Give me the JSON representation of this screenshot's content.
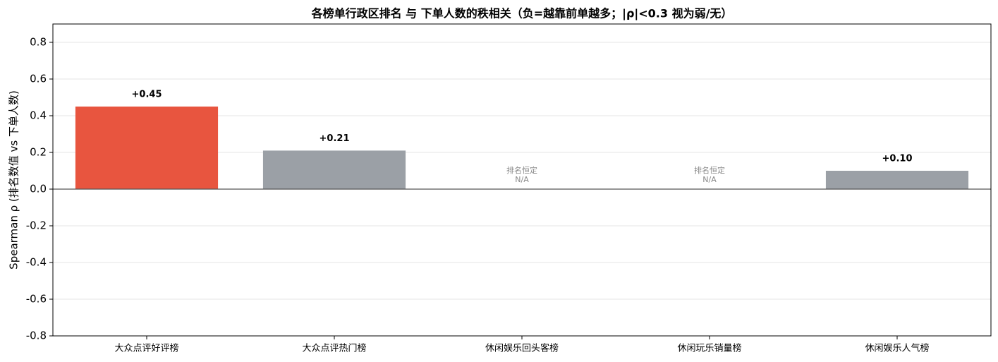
{
  "chart_data": {
    "type": "bar",
    "title": "各榜单行政区排名 与 下单人数的秩相关（负=越靠前单越多；|ρ|<0.3 视为弱/无）",
    "y_label": "Spearman ρ (排名数值 vs 下单人数)",
    "categories": [
      "大众点评好评榜",
      "大众点评热门榜",
      "休闲娱乐回头客榜",
      "休闲玩乐销量榜",
      "休闲娱乐人气榜"
    ],
    "values": [
      0.45,
      0.21,
      null,
      null,
      0.1
    ],
    "value_labels": [
      "+0.45",
      "+0.21",
      "N/A",
      "N/A",
      "+0.10"
    ],
    "notes": [
      null,
      null,
      "排名恒定",
      "排名恒定",
      null
    ],
    "colors": [
      "#e8553f",
      "#9ba0a6",
      null,
      null,
      "#9ba0a6"
    ],
    "ylim": [
      -0.8,
      0.9
    ],
    "yticks": [
      -0.8,
      -0.6,
      -0.4,
      -0.2,
      {
        "value": 0,
        "label": "0.0"
      },
      0.2,
      0.4,
      0.6,
      0.8
    ],
    "grid": true
  }
}
